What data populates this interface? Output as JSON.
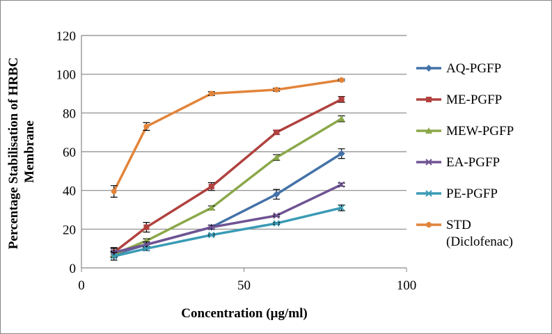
{
  "chart_data": {
    "type": "line",
    "title": "",
    "xlabel": "Concentration  (µg/ml)",
    "ylabel": [
      "Percentage Stabilisation of HRBC",
      "Membrane"
    ],
    "xlim": [
      0,
      100
    ],
    "ylim": [
      0,
      120
    ],
    "xticks": [
      0,
      50,
      100
    ],
    "yticks": [
      0,
      20,
      40,
      60,
      80,
      100,
      120
    ],
    "grid": "horizontal",
    "legend_position": "right",
    "x": [
      10,
      20,
      40,
      60,
      80
    ],
    "series": [
      {
        "name": "AQ-PGFP",
        "color": "#4472A8",
        "marker": "diamond",
        "values": [
          7,
          12,
          21,
          38,
          59
        ],
        "errors": [
          1.5,
          1.5,
          1,
          2.5,
          2.5
        ]
      },
      {
        "name": "ME-PGFP",
        "color": "#B0413E",
        "marker": "square",
        "values": [
          8,
          21,
          42,
          70,
          87
        ],
        "errors": [
          2,
          2.5,
          2,
          1,
          1.5
        ]
      },
      {
        "name": "MEW-PGFP",
        "color": "#8BA84A",
        "marker": "triangle",
        "values": [
          7,
          14,
          31,
          57,
          77
        ],
        "errors": [
          1.5,
          1,
          1,
          1.5,
          1.5
        ]
      },
      {
        "name": "EA-PGFP",
        "color": "#6F5393",
        "marker": "x",
        "values": [
          8,
          12,
          21,
          27,
          43
        ],
        "errors": [
          2.5,
          1.5,
          1,
          0.5,
          0.8
        ]
      },
      {
        "name": "PE-PGFP",
        "color": "#3A9BB5",
        "marker": "star",
        "values": [
          6,
          10,
          17,
          23,
          31
        ],
        "errors": [
          2,
          1,
          0.5,
          0.5,
          1.5
        ]
      },
      {
        "name": "STD\n(Diclofenac)",
        "color": "#E2843A",
        "marker": "circle",
        "values": [
          39.5,
          73,
          90,
          92,
          97
        ],
        "errors": [
          3,
          2,
          1,
          0.8,
          0.5
        ]
      }
    ]
  }
}
